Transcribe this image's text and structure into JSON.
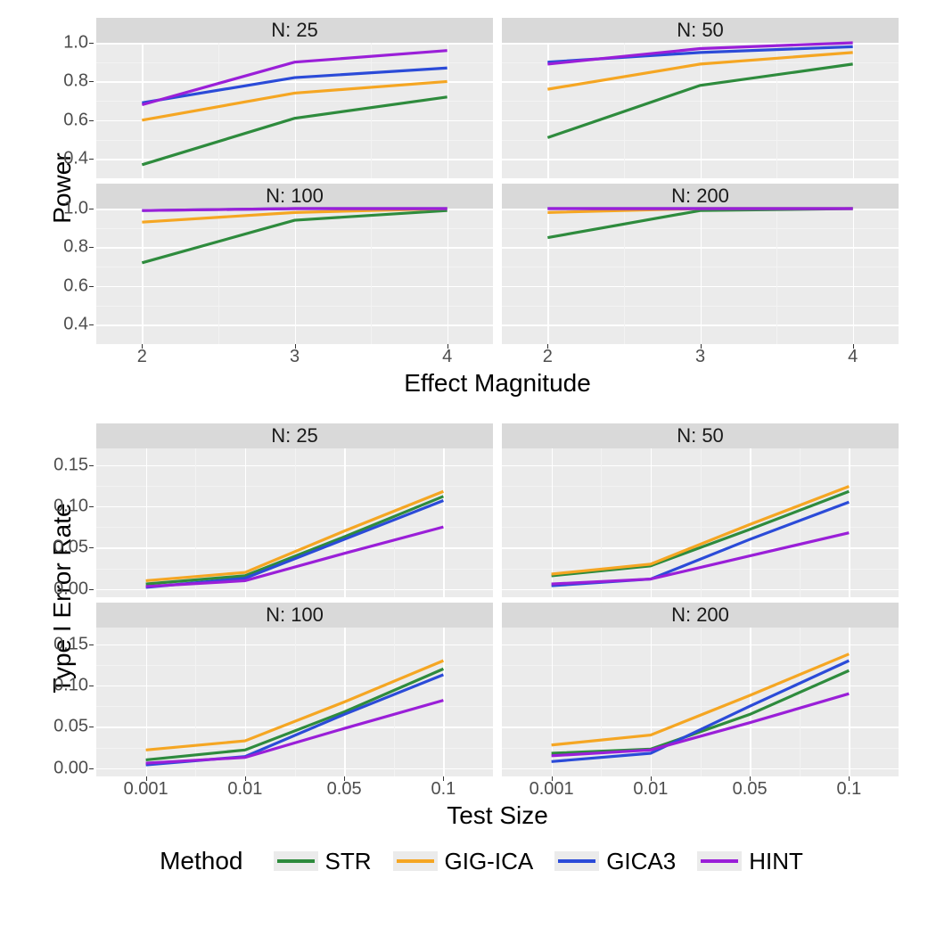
{
  "colors": {
    "STR": "#2e8b3d",
    "GIG-ICA": "#f5a623",
    "GICA3": "#2b4bd8",
    "HINT": "#9a1fd8",
    "panel_bg": "#ebebeb",
    "strip_bg": "#d9d9d9",
    "grid": "#ffffff",
    "minor_grid": "#f3f3f3",
    "tick_text": "#4d4d4d"
  },
  "line_width": 3.2,
  "legend": {
    "title": "Method",
    "items": [
      "STR",
      "GIG-ICA",
      "GICA3",
      "HINT"
    ]
  },
  "power": {
    "y_label": "Power",
    "x_label": "Effect Magnitude",
    "x_ticks": [
      2,
      3,
      4
    ],
    "facets": [
      {
        "title": "N: 25",
        "ylim": [
          0.3,
          1.0
        ],
        "y_ticks": [
          0.4,
          0.6,
          0.8,
          1.0
        ],
        "series": {
          "STR": [
            [
              2,
              0.37
            ],
            [
              3,
              0.61
            ],
            [
              4,
              0.72
            ]
          ],
          "GIG-ICA": [
            [
              2,
              0.6
            ],
            [
              3,
              0.74
            ],
            [
              4,
              0.8
            ]
          ],
          "GICA3": [
            [
              2,
              0.69
            ],
            [
              3,
              0.82
            ],
            [
              4,
              0.87
            ]
          ],
          "HINT": [
            [
              2,
              0.68
            ],
            [
              3,
              0.9
            ],
            [
              4,
              0.96
            ]
          ]
        }
      },
      {
        "title": "N: 50",
        "ylim": [
          0.3,
          1.0
        ],
        "y_ticks": [
          0.4,
          0.6,
          0.8,
          1.0
        ],
        "series": {
          "STR": [
            [
              2,
              0.51
            ],
            [
              3,
              0.78
            ],
            [
              4,
              0.89
            ]
          ],
          "GIG-ICA": [
            [
              2,
              0.76
            ],
            [
              3,
              0.89
            ],
            [
              4,
              0.95
            ]
          ],
          "GICA3": [
            [
              2,
              0.9
            ],
            [
              3,
              0.95
            ],
            [
              4,
              0.98
            ]
          ],
          "HINT": [
            [
              2,
              0.89
            ],
            [
              3,
              0.97
            ],
            [
              4,
              1.0
            ]
          ]
        }
      },
      {
        "title": "N: 100",
        "ylim": [
          0.3,
          1.0
        ],
        "y_ticks": [
          0.4,
          0.6,
          0.8,
          1.0
        ],
        "series": {
          "STR": [
            [
              2,
              0.72
            ],
            [
              3,
              0.94
            ],
            [
              4,
              0.99
            ]
          ],
          "GIG-ICA": [
            [
              2,
              0.93
            ],
            [
              3,
              0.98
            ],
            [
              4,
              1.0
            ]
          ],
          "GICA3": [
            [
              2,
              0.99
            ],
            [
              3,
              1.0
            ],
            [
              4,
              1.0
            ]
          ],
          "HINT": [
            [
              2,
              0.99
            ],
            [
              3,
              1.0
            ],
            [
              4,
              1.0
            ]
          ]
        }
      },
      {
        "title": "N: 200",
        "ylim": [
          0.3,
          1.0
        ],
        "y_ticks": [
          0.4,
          0.6,
          0.8,
          1.0
        ],
        "series": {
          "STR": [
            [
              2,
              0.85
            ],
            [
              3,
              0.99
            ],
            [
              4,
              1.0
            ]
          ],
          "GIG-ICA": [
            [
              2,
              0.98
            ],
            [
              3,
              1.0
            ],
            [
              4,
              1.0
            ]
          ],
          "GICA3": [
            [
              2,
              1.0
            ],
            [
              3,
              1.0
            ],
            [
              4,
              1.0
            ]
          ],
          "HINT": [
            [
              2,
              1.0
            ],
            [
              3,
              1.0
            ],
            [
              4,
              1.0
            ]
          ]
        }
      }
    ]
  },
  "type1": {
    "y_label": "Type I Error Rate",
    "x_label": "Test Size",
    "x_categories": [
      "0.001",
      "0.01",
      "0.05",
      "0.1"
    ],
    "facets": [
      {
        "title": "N: 25",
        "ylim": [
          -0.01,
          0.17
        ],
        "y_ticks": [
          0.0,
          0.05,
          0.1,
          0.15
        ],
        "series": {
          "STR": [
            0.006,
            0.016,
            0.063,
            0.112
          ],
          "GIG-ICA": [
            0.01,
            0.02,
            0.07,
            0.118
          ],
          "GICA3": [
            0.002,
            0.013,
            0.06,
            0.107
          ],
          "HINT": [
            0.003,
            0.01,
            0.043,
            0.075
          ]
        }
      },
      {
        "title": "N: 50",
        "ylim": [
          -0.01,
          0.17
        ],
        "y_ticks": [
          0.0,
          0.05,
          0.1,
          0.15
        ],
        "series": {
          "STR": [
            0.016,
            0.028,
            0.072,
            0.118
          ],
          "GIG-ICA": [
            0.018,
            0.03,
            0.078,
            0.124
          ],
          "GICA3": [
            0.004,
            0.012,
            0.06,
            0.105
          ],
          "HINT": [
            0.006,
            0.012,
            0.04,
            0.068
          ]
        }
      },
      {
        "title": "N: 100",
        "ylim": [
          -0.01,
          0.17
        ],
        "y_ticks": [
          0.0,
          0.05,
          0.1,
          0.15
        ],
        "series": {
          "STR": [
            0.01,
            0.022,
            0.068,
            0.12
          ],
          "GIG-ICA": [
            0.022,
            0.033,
            0.08,
            0.13
          ],
          "GICA3": [
            0.004,
            0.014,
            0.065,
            0.113
          ],
          "HINT": [
            0.006,
            0.013,
            0.048,
            0.082
          ]
        }
      },
      {
        "title": "N: 200",
        "ylim": [
          -0.01,
          0.17
        ],
        "y_ticks": [
          0.0,
          0.05,
          0.1,
          0.15
        ],
        "series": {
          "STR": [
            0.018,
            0.023,
            0.065,
            0.118
          ],
          "GIG-ICA": [
            0.028,
            0.04,
            0.088,
            0.138
          ],
          "GICA3": [
            0.008,
            0.018,
            0.075,
            0.13
          ],
          "HINT": [
            0.015,
            0.022,
            0.055,
            0.09
          ]
        }
      }
    ]
  }
}
